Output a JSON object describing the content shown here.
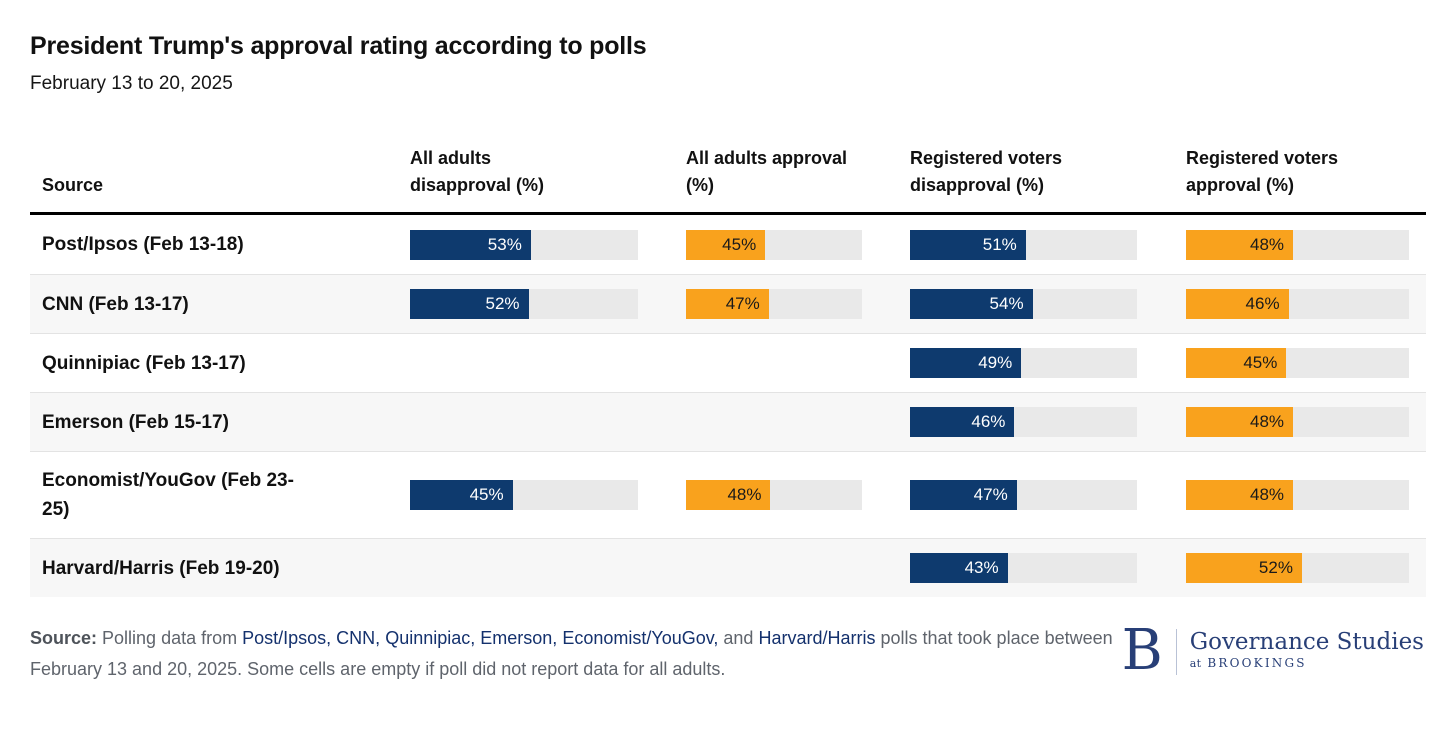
{
  "title": "President Trump's approval rating according to polls",
  "subtitle": "February 13 to 20, 2025",
  "colors": {
    "navy": "#0e3a6e",
    "orange": "#f9a21d",
    "bar_track": "#e9e9e9",
    "row_stripe": "#f7f7f7",
    "link_navy": "#14316d",
    "footer_gray": "#5f646c",
    "logo_navy": "#283f77",
    "logo_divider": "#b9c2d6"
  },
  "table": {
    "header": [
      "Source",
      "All adults disapproval (%)",
      "All adults approval (%)",
      "Registered voters disapproval (%)",
      "Registered voters approval (%)"
    ]
  },
  "chart_data": {
    "type": "bar",
    "orientation": "horizontal",
    "title": "President Trump's approval rating according to polls",
    "subtitle": "February 13 to 20, 2025",
    "value_range": [
      0,
      100
    ],
    "value_suffix": "%",
    "grid": false,
    "legend_position": "column-headers",
    "categories": [
      "Post/Ipsos (Feb 13-18)",
      "CNN (Feb 13-17)",
      "Quinnipiac (Feb 13-17)",
      "Emerson (Feb 15-17)",
      "Economist/YouGov (Feb 23-25)",
      "Harvard/Harris (Feb 19-20)"
    ],
    "series": [
      {
        "name": "All adults disapproval (%)",
        "color": "#0e3a6e",
        "label_color": "#ffffff",
        "values": [
          53,
          52,
          null,
          null,
          45,
          null
        ]
      },
      {
        "name": "All adults approval (%)",
        "color": "#f9a21d",
        "label_color": "#1a1a1a",
        "values": [
          45,
          47,
          null,
          null,
          48,
          null
        ]
      },
      {
        "name": "Registered voters disapproval (%)",
        "color": "#0e3a6e",
        "label_color": "#ffffff",
        "values": [
          51,
          54,
          49,
          46,
          47,
          43
        ]
      },
      {
        "name": "Registered voters approval (%)",
        "color": "#f9a21d",
        "label_color": "#1a1a1a",
        "values": [
          48,
          46,
          45,
          48,
          48,
          52
        ]
      }
    ]
  },
  "footer": {
    "segments": [
      {
        "type": "label",
        "text": "Source:"
      },
      {
        "type": "text",
        "text": " Polling data from "
      },
      {
        "type": "link",
        "text": "Post/Ipsos,"
      },
      {
        "type": "text",
        "text": " "
      },
      {
        "type": "link",
        "text": "CNN,"
      },
      {
        "type": "text",
        "text": " "
      },
      {
        "type": "link",
        "text": "Quinnipiac,"
      },
      {
        "type": "text",
        "text": " "
      },
      {
        "type": "link",
        "text": "Emerson,"
      },
      {
        "type": "text",
        "text": " "
      },
      {
        "type": "link",
        "text": "Economist/YouGov,"
      },
      {
        "type": "text",
        "text": " and "
      },
      {
        "type": "link",
        "text": "Harvard/Harris"
      },
      {
        "type": "text",
        "text": " polls that took place between February 13 and 20, 2025. Some cells are empty if poll did not report data for all adults."
      }
    ]
  },
  "logo": {
    "mark": "B",
    "name": "Governance Studies",
    "sub_prefix": "at",
    "sub_name": "BROOKINGS"
  }
}
